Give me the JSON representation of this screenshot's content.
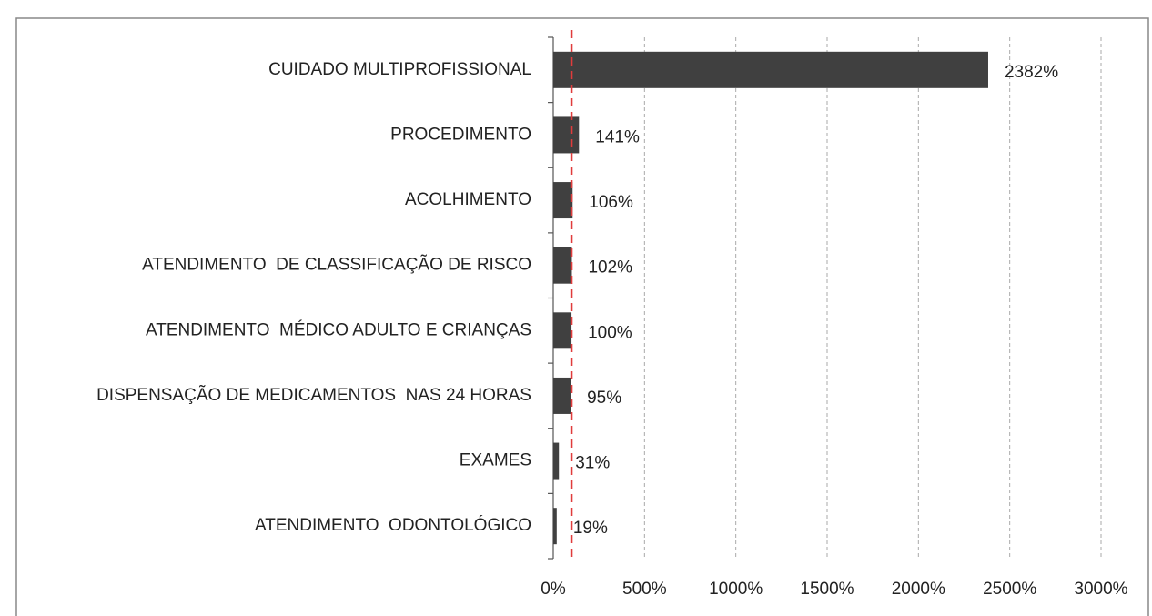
{
  "chart_data": {
    "type": "bar",
    "orientation": "horizontal",
    "categories": [
      "CUIDADO MULTIPROFISSIONAL",
      "PROCEDIMENTO",
      "ACOLHIMENTO",
      "ATENDIMENTO  DE CLASSIFICAÇÃO DE RISCO",
      "ATENDIMENTO  MÉDICO ADULTO E CRIANÇAS",
      "DISPENSAÇÃO DE MEDICAMENTOS  NAS 24 HORAS",
      "EXAMES",
      "ATENDIMENTO  ODONTOLÓGICO"
    ],
    "values": [
      2382,
      141,
      106,
      102,
      100,
      95,
      31,
      19
    ],
    "value_labels": [
      "2382%",
      "141%",
      "106%",
      "102%",
      "100%",
      "95%",
      "31%",
      "19%"
    ],
    "color": "#404040",
    "xlim": [
      0,
      3000
    ],
    "xticks": [
      {
        "value": 0,
        "label": "0%"
      },
      {
        "value": 500,
        "label": "500%"
      },
      {
        "value": 1000,
        "label": "1000%"
      },
      {
        "value": 1500,
        "label": "1500%"
      },
      {
        "value": 2000,
        "label": "2000%"
      },
      {
        "value": 2500,
        "label": "2500%"
      },
      {
        "value": 3000,
        "label": "3000%"
      }
    ],
    "grid": true,
    "reference_line": {
      "value": 100,
      "color": "#e03c3c"
    }
  }
}
